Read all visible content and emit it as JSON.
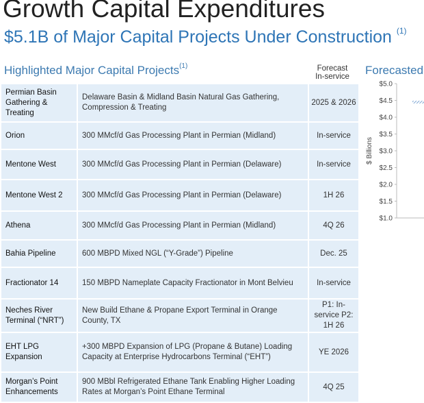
{
  "header": {
    "title": "Growth Capital Expenditures",
    "subtitle": "$5.1B of Major Capital Projects Under Construction",
    "subtitle_note": "(1)"
  },
  "table": {
    "title": "Highlighted Major Capital Projects",
    "title_note": "(1)",
    "forecast_header": [
      "Forecast",
      "In-service"
    ],
    "rows": [
      {
        "name": "Permian Basin Gathering & Treating",
        "desc": "Delaware Basin & Midland Basin Natural Gas Gathering, Compression & Treating",
        "forecast": "2025 & 2026"
      },
      {
        "name": "Orion",
        "desc": "300 MMcf/d Gas Processing Plant in Permian (Midland)",
        "forecast": "In-service"
      },
      {
        "name": "Mentone West",
        "desc": "300 MMcf/d Gas Processing Plant in Permian (Delaware)",
        "forecast": "In-service"
      },
      {
        "name": "Mentone West 2",
        "desc": "300 MMcf/d Gas Processing Plant in Permian (Delaware)",
        "forecast": "1H 26"
      },
      {
        "name": "Athena",
        "desc": "300 MMcf/d Gas Processing Plant in Permian (Midland)",
        "forecast": "4Q 26"
      },
      {
        "name": "Bahia Pipeline",
        "desc": "600 MBPD Mixed NGL (“Y-Grade”) Pipeline",
        "forecast": "Dec. 25"
      },
      {
        "name": "Fractionator 14",
        "desc": "150 MBPD Nameplate Capacity Fractionator in Mont Belvieu",
        "forecast": "In-service"
      },
      {
        "name": "Neches River Terminal (“NRT”)",
        "desc": "New Build Ethane & Propane Export Terminal in Orange County, TX",
        "forecast": "P1: In-service P2: 1H 26"
      },
      {
        "name": "EHT LPG Expansion",
        "desc": "+300 MBPD Expansion of LPG (Propane & Butane) Loading Capacity at Enterprise Hydrocarbons Terminal (“EHT”)",
        "forecast": "YE 2026"
      },
      {
        "name": "Morgan’s Point Enhancements",
        "desc": "900 MBbl Refrigerated Ethane Tank Enabling Higher Loading Rates at Morgan’s Point Ethane Terminal",
        "forecast": "4Q 25"
      }
    ]
  },
  "chart_data": {
    "type": "bar",
    "title": "Forecasted",
    "ylabel": "$ Billions",
    "ylim": [
      1.0,
      5.0
    ],
    "yticks": [
      "$5.0",
      "$4.5",
      "$4.0",
      "$3.5",
      "$3.0",
      "$2.5",
      "$2.0",
      "$1.5",
      "$1.0"
    ],
    "values": [
      4.45
    ],
    "bar_color": "#5b8fc9",
    "bar_pattern": "hatched"
  }
}
